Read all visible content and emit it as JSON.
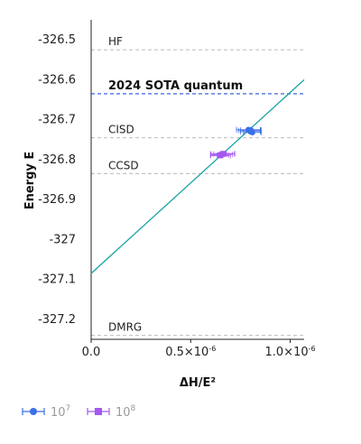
{
  "chart_data": {
    "type": "scatter",
    "xlabel": "ΔH/E²",
    "ylabel": "Energy E",
    "xlim": [
      0,
      1.07
    ],
    "ylim": [
      -327.25,
      -326.45
    ],
    "x_ticks": [
      {
        "value": 0,
        "mantissa": "0.0",
        "exp": ""
      },
      {
        "value": 0.5,
        "mantissa": "0.5×10",
        "exp": "-6"
      },
      {
        "value": 1.0,
        "mantissa": "1.0×10",
        "exp": "-6"
      }
    ],
    "y_ticks": [
      {
        "value": -326.5,
        "label": "-326.5"
      },
      {
        "value": -326.6,
        "label": "-326.6"
      },
      {
        "value": -326.7,
        "label": "-326.7"
      },
      {
        "value": -326.8,
        "label": "-326.8"
      },
      {
        "value": -326.9,
        "label": "-326.9"
      },
      {
        "value": -327.0,
        "label": "-327"
      },
      {
        "value": -327.1,
        "label": "-327.1"
      },
      {
        "value": -327.2,
        "label": "-327.2"
      }
    ],
    "reference_lines": [
      {
        "label": "HF",
        "y": -326.525,
        "color": "#c4c4c4",
        "bold": false
      },
      {
        "label": "2024 SOTA quantum",
        "y": -326.635,
        "color": "#5b7ee8",
        "bold": true
      },
      {
        "label": "CISD",
        "y": -326.745,
        "color": "#c4c4c4",
        "bold": false
      },
      {
        "label": "CCSD",
        "y": -326.835,
        "color": "#c4c4c4",
        "bold": false
      },
      {
        "label": "DMRG",
        "y": -327.24,
        "color": "#c4c4c4",
        "bold": false
      }
    ],
    "fit_line": {
      "color": "#1aa3a3",
      "x": [
        0,
        1.07
      ],
      "y": [
        -327.085,
        -326.6
      ]
    },
    "series": [
      {
        "name": "10⁷",
        "legend_base": "10",
        "legend_exp": "7",
        "color": "#3b6fe8",
        "marker": "circle",
        "points": [
          {
            "x": 0.795,
            "y": -326.727,
            "xerr": 0.055
          },
          {
            "x": 0.8,
            "y": -326.73,
            "xerr": 0.05
          },
          {
            "x": 0.79,
            "y": -326.725,
            "xerr": 0.06
          },
          {
            "x": 0.81,
            "y": -326.732,
            "xerr": 0.045
          },
          {
            "x": 0.803,
            "y": -326.726,
            "xerr": 0.052
          }
        ]
      },
      {
        "name": "10⁸",
        "legend_base": "10",
        "legend_exp": "8",
        "color": "#a358f0",
        "marker": "square",
        "points": [
          {
            "x": 0.655,
            "y": -326.787,
            "xerr": 0.055
          },
          {
            "x": 0.65,
            "y": -326.79,
            "xerr": 0.05
          },
          {
            "x": 0.662,
            "y": -326.785,
            "xerr": 0.06
          },
          {
            "x": 0.645,
            "y": -326.789,
            "xerr": 0.045
          },
          {
            "x": 0.668,
            "y": -326.786,
            "xerr": 0.052
          }
        ]
      }
    ]
  }
}
